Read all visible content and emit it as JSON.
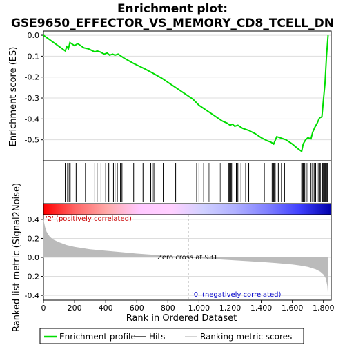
{
  "chart_data": {
    "type": "line",
    "title_line1": "Enrichment plot:",
    "title_line2": "GSE9650_EFFECTOR_VS_MEMORY_CD8_TCELL_DN",
    "top_panel": {
      "ylabel": "Enrichment score (ES)",
      "ylim": [
        -0.6,
        0.02
      ],
      "yticks": [
        0.0,
        -0.1,
        -0.2,
        -0.3,
        -0.4,
        -0.5
      ],
      "ytick_labels": [
        "0.0",
        "-0.1",
        "-0.2",
        "-0.3",
        "-0.4",
        "-0.5"
      ],
      "line_color": "#00dd00",
      "series": [
        {
          "x": [
            0,
            140,
            150,
            160,
            170,
            200,
            220,
            260,
            290,
            330,
            345,
            365,
            390,
            410,
            425,
            445,
            460,
            480,
            500,
            520,
            580,
            650,
            700,
            760,
            820,
            880,
            960,
            1000,
            1060,
            1110,
            1150,
            1180,
            1200,
            1215,
            1230,
            1250,
            1280,
            1320,
            1360,
            1400,
            1440,
            1460,
            1480,
            1500,
            1520,
            1560,
            1600,
            1640,
            1660,
            1670,
            1685,
            1700,
            1720,
            1730,
            1745,
            1760,
            1775,
            1790,
            1800,
            1810,
            1820,
            1830
          ],
          "values": [
            0.0,
            -0.075,
            -0.055,
            -0.065,
            -0.035,
            -0.05,
            -0.04,
            -0.06,
            -0.065,
            -0.08,
            -0.075,
            -0.08,
            -0.09,
            -0.085,
            -0.095,
            -0.09,
            -0.095,
            -0.09,
            -0.1,
            -0.11,
            -0.135,
            -0.16,
            -0.18,
            -0.205,
            -0.235,
            -0.265,
            -0.305,
            -0.335,
            -0.365,
            -0.39,
            -0.41,
            -0.42,
            -0.43,
            -0.425,
            -0.435,
            -0.43,
            -0.445,
            -0.455,
            -0.47,
            -0.49,
            -0.505,
            -0.51,
            -0.52,
            -0.485,
            -0.49,
            -0.5,
            -0.52,
            -0.545,
            -0.555,
            -0.52,
            -0.5,
            -0.49,
            -0.495,
            -0.465,
            -0.44,
            -0.42,
            -0.395,
            -0.39,
            -0.31,
            -0.23,
            -0.1,
            0.0
          ]
        }
      ]
    },
    "hits_panel": {
      "hits": [
        140,
        155,
        165,
        172,
        210,
        270,
        330,
        345,
        370,
        400,
        420,
        450,
        460,
        475,
        495,
        505,
        580,
        640,
        690,
        700,
        710,
        770,
        850,
        985,
        1000,
        1030,
        1060,
        1070,
        1130,
        1140,
        1190,
        1195,
        1200,
        1205,
        1210,
        1240,
        1250,
        1270,
        1300,
        1320,
        1420,
        1470,
        1475,
        1480,
        1485,
        1490,
        1510,
        1530,
        1550,
        1660,
        1665,
        1670,
        1675,
        1680,
        1690,
        1700,
        1720,
        1730,
        1740,
        1750,
        1760,
        1770,
        1775,
        1780,
        1790,
        1795,
        1800,
        1805,
        1810,
        1815,
        1820,
        1825
      ]
    },
    "metric_panel": {
      "ylabel": "Ranked list metric (Signal2Noise)",
      "xlabel": "Rank in Ordered Dataset",
      "ylim": [
        -0.45,
        0.45
      ],
      "yticks": [
        0.4,
        0.2,
        0.0,
        -0.2,
        -0.4
      ],
      "ytick_labels": [
        "0.4",
        "0.2",
        "0.0",
        "-0.2",
        "-0.4"
      ],
      "xlim": [
        0,
        1850
      ],
      "xticks": [
        0,
        200,
        400,
        600,
        800,
        1000,
        1200,
        1400,
        1600,
        1800
      ],
      "xtick_labels": [
        "0",
        "200",
        "400",
        "600",
        "800",
        "1,000",
        "1,200",
        "1,400",
        "1,600",
        "1,800"
      ],
      "zero_cross_rank": 931,
      "zero_cross_label": "Zero cross at 931",
      "pos_label": "'2' (positively correlated)",
      "neg_label": "'0' (negatively correlated)",
      "pos_label_color": "#cc0000",
      "neg_label_color": "#0000cc",
      "fill_color": "#bbbbbb",
      "series": [
        {
          "x": [
            0,
            10,
            20,
            40,
            60,
            100,
            150,
            200,
            300,
            400,
            500,
            600,
            700,
            800,
            900,
            931,
            1000,
            1100,
            1200,
            1300,
            1400,
            1500,
            1600,
            1650,
            1700,
            1750,
            1780,
            1800,
            1815,
            1825,
            1830
          ],
          "values": [
            0.4,
            0.32,
            0.27,
            0.22,
            0.19,
            0.16,
            0.13,
            0.11,
            0.085,
            0.07,
            0.055,
            0.04,
            0.028,
            0.015,
            0.004,
            0.0,
            -0.008,
            -0.018,
            -0.028,
            -0.038,
            -0.048,
            -0.06,
            -0.075,
            -0.085,
            -0.1,
            -0.125,
            -0.15,
            -0.18,
            -0.22,
            -0.3,
            -0.42
          ]
        }
      ]
    },
    "gradient_bar": {
      "stops": [
        "#ff0000",
        "#ff6666",
        "#ffaaaa",
        "#ffc8ff",
        "#ffd0ff",
        "#d0d0ff",
        "#b0b0ff",
        "#8080ff",
        "#4040ff",
        "#0000aa"
      ]
    },
    "legend": {
      "items": [
        {
          "label": "Enrichment profile",
          "color": "#00dd00"
        },
        {
          "label": "Hits",
          "color": "#000000"
        },
        {
          "label": "Ranking metric scores",
          "color": "#bbbbbb"
        }
      ]
    }
  }
}
